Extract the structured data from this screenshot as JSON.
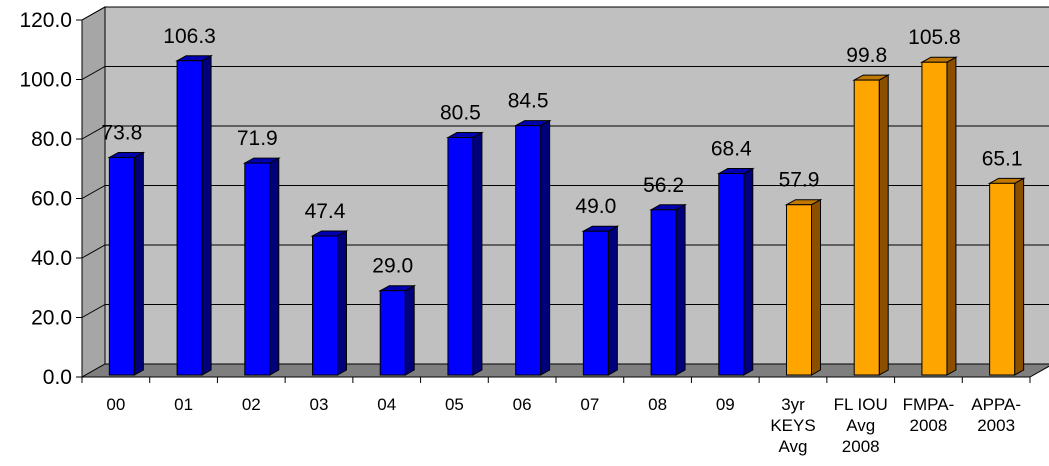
{
  "chart_data": {
    "type": "bar",
    "title": "",
    "xlabel": "",
    "ylabel": "",
    "ylim": [
      0,
      120
    ],
    "yticks": [
      "0.0",
      "20.0",
      "40.0",
      "60.0",
      "80.0",
      "100.0",
      "120.0"
    ],
    "grid": true,
    "legend": "none",
    "categories": [
      [
        "00"
      ],
      [
        "01"
      ],
      [
        "02"
      ],
      [
        "03"
      ],
      [
        "04"
      ],
      [
        "05"
      ],
      [
        "06"
      ],
      [
        "07"
      ],
      [
        "08"
      ],
      [
        "09"
      ],
      [
        "3yr",
        "KEYS",
        "Avg"
      ],
      [
        "FL IOU",
        "Avg",
        "2008"
      ],
      [
        "FMPA-",
        "2008"
      ],
      [
        "APPA-",
        "2003"
      ]
    ],
    "values": [
      73.8,
      106.3,
      71.9,
      47.4,
      29.0,
      80.5,
      84.5,
      49.0,
      56.2,
      68.4,
      57.9,
      99.8,
      105.8,
      65.1
    ],
    "value_labels": [
      "73.8",
      "106.3",
      "71.9",
      "47.4",
      "29.0",
      "80.5",
      "84.5",
      "49.0",
      "56.2",
      "68.4",
      "57.9",
      "99.8",
      "105.8",
      "65.1"
    ],
    "bar_groups": [
      "blue",
      "blue",
      "blue",
      "blue",
      "blue",
      "blue",
      "blue",
      "blue",
      "blue",
      "blue",
      "orange",
      "orange",
      "orange",
      "orange"
    ]
  },
  "colors": {
    "blue_front": "#0000FF",
    "blue_side": "#00007A",
    "blue_top": "#0000B0",
    "orange_front": "#FFA500",
    "orange_side": "#8A5000",
    "orange_top": "#C07800",
    "wall": "#C0C0C0",
    "floor": "#7F7F7F",
    "gridline": "#000000"
  }
}
